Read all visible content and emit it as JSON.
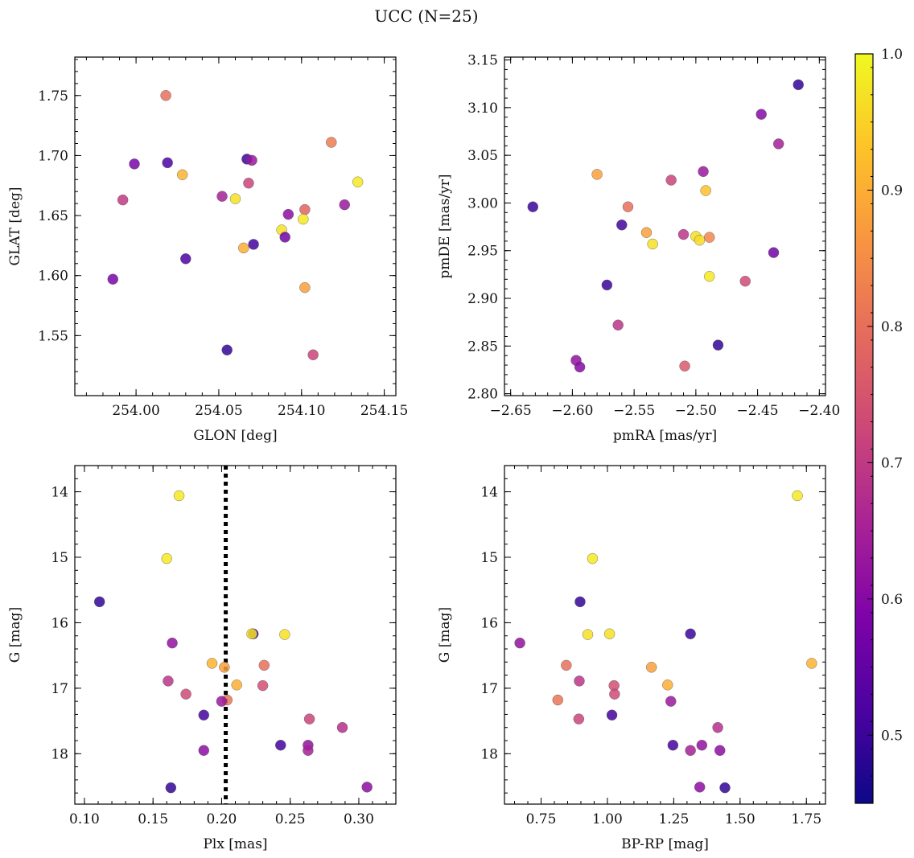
{
  "figure": {
    "title": "UCC (N=25)"
  },
  "colorbar": {
    "range": [
      0.45,
      1.0
    ],
    "ticks": [
      0.5,
      0.6,
      0.7,
      0.8,
      0.9,
      1.0
    ],
    "tick_labels": [
      "0.5",
      "0.6",
      "0.7",
      "0.8",
      "0.9",
      "1.0"
    ],
    "colormap": "plasma"
  },
  "chart_data": [
    {
      "type": "scatter",
      "id": "glon-glat",
      "xlabel": "GLON [deg]",
      "ylabel": "GLAT [deg]",
      "xlim": [
        253.963,
        254.157
      ],
      "ylim": [
        1.5,
        1.782
      ],
      "xticks": [
        254.0,
        254.05,
        254.1,
        254.15
      ],
      "xtick_labels": [
        "254.00",
        "254.05",
        "254.10",
        "254.15"
      ],
      "yticks": [
        1.55,
        1.6,
        1.65,
        1.7,
        1.75
      ],
      "ytick_labels": [
        "1.55",
        "1.60",
        "1.65",
        "1.70",
        "1.75"
      ],
      "points": [
        {
          "x": 254.018,
          "y": 1.75,
          "c": 0.8
        },
        {
          "x": 253.999,
          "y": 1.693,
          "c": 0.58
        },
        {
          "x": 254.019,
          "y": 1.694,
          "c": 0.52
        },
        {
          "x": 254.067,
          "y": 1.697,
          "c": 0.5
        },
        {
          "x": 254.07,
          "y": 1.696,
          "c": 0.63
        },
        {
          "x": 254.118,
          "y": 1.711,
          "c": 0.82
        },
        {
          "x": 253.992,
          "y": 1.663,
          "c": 0.7
        },
        {
          "x": 254.028,
          "y": 1.684,
          "c": 0.91
        },
        {
          "x": 254.052,
          "y": 1.666,
          "c": 0.65
        },
        {
          "x": 254.06,
          "y": 1.664,
          "c": 0.97
        },
        {
          "x": 254.068,
          "y": 1.677,
          "c": 0.72
        },
        {
          "x": 254.134,
          "y": 1.678,
          "c": 0.98
        },
        {
          "x": 254.092,
          "y": 1.651,
          "c": 0.61
        },
        {
          "x": 254.102,
          "y": 1.655,
          "c": 0.78
        },
        {
          "x": 254.101,
          "y": 1.647,
          "c": 0.98
        },
        {
          "x": 254.126,
          "y": 1.659,
          "c": 0.63
        },
        {
          "x": 254.088,
          "y": 1.638,
          "c": 0.97
        },
        {
          "x": 254.09,
          "y": 1.632,
          "c": 0.57
        },
        {
          "x": 254.065,
          "y": 1.623,
          "c": 0.9
        },
        {
          "x": 254.071,
          "y": 1.626,
          "c": 0.51
        },
        {
          "x": 254.03,
          "y": 1.614,
          "c": 0.52
        },
        {
          "x": 253.986,
          "y": 1.597,
          "c": 0.58
        },
        {
          "x": 254.102,
          "y": 1.59,
          "c": 0.88
        },
        {
          "x": 254.055,
          "y": 1.538,
          "c": 0.49
        },
        {
          "x": 254.107,
          "y": 1.534,
          "c": 0.72
        }
      ]
    },
    {
      "type": "scatter",
      "id": "pmra-pmde",
      "xlabel": "pmRA [mas/yr]",
      "ylabel": "pmDE [mas/yr]",
      "xlim": [
        -2.655,
        -2.395
      ],
      "ylim": [
        2.798,
        3.153
      ],
      "xticks": [
        -2.65,
        -2.6,
        -2.55,
        -2.5,
        -2.45,
        -2.4
      ],
      "xtick_labels": [
        "−2.65",
        "−2.60",
        "−2.55",
        "−2.50",
        "−2.45",
        "−2.40"
      ],
      "yticks": [
        2.8,
        2.85,
        2.9,
        2.95,
        3.0,
        3.05,
        3.1,
        3.15
      ],
      "ytick_labels": [
        "2.80",
        "2.85",
        "2.90",
        "2.95",
        "3.00",
        "3.05",
        "3.10",
        "3.15"
      ],
      "points": [
        {
          "x": -2.417,
          "y": 3.124,
          "c": 0.49
        },
        {
          "x": -2.447,
          "y": 3.093,
          "c": 0.6
        },
        {
          "x": -2.433,
          "y": 3.062,
          "c": 0.65
        },
        {
          "x": -2.494,
          "y": 3.033,
          "c": 0.63
        },
        {
          "x": -2.58,
          "y": 3.03,
          "c": 0.88
        },
        {
          "x": -2.52,
          "y": 3.024,
          "c": 0.72
        },
        {
          "x": -2.492,
          "y": 3.013,
          "c": 0.93
        },
        {
          "x": -2.632,
          "y": 2.996,
          "c": 0.5
        },
        {
          "x": -2.555,
          "y": 2.996,
          "c": 0.8
        },
        {
          "x": -2.56,
          "y": 2.977,
          "c": 0.51
        },
        {
          "x": -2.54,
          "y": 2.969,
          "c": 0.88
        },
        {
          "x": -2.51,
          "y": 2.967,
          "c": 0.69
        },
        {
          "x": -2.5,
          "y": 2.965,
          "c": 0.97
        },
        {
          "x": -2.497,
          "y": 2.961,
          "c": 0.96
        },
        {
          "x": -2.489,
          "y": 2.964,
          "c": 0.84
        },
        {
          "x": -2.535,
          "y": 2.957,
          "c": 0.97
        },
        {
          "x": -2.437,
          "y": 2.948,
          "c": 0.57
        },
        {
          "x": -2.489,
          "y": 2.923,
          "c": 0.98
        },
        {
          "x": -2.46,
          "y": 2.918,
          "c": 0.73
        },
        {
          "x": -2.572,
          "y": 2.914,
          "c": 0.5
        },
        {
          "x": -2.563,
          "y": 2.872,
          "c": 0.69
        },
        {
          "x": -2.482,
          "y": 2.851,
          "c": 0.49
        },
        {
          "x": -2.597,
          "y": 2.835,
          "c": 0.62
        },
        {
          "x": -2.594,
          "y": 2.828,
          "c": 0.6
        },
        {
          "x": -2.509,
          "y": 2.829,
          "c": 0.76
        }
      ]
    },
    {
      "type": "scatter",
      "id": "plx-g",
      "xlabel": "Plx [mas]",
      "ylabel": "G [mag]",
      "xlim": [
        0.093,
        0.327
      ],
      "ylim": [
        18.77,
        13.6
      ],
      "y_inverted": true,
      "vline": 0.203,
      "xticks": [
        0.1,
        0.15,
        0.2,
        0.25,
        0.3
      ],
      "xtick_labels": [
        "0.10",
        "0.15",
        "0.20",
        "0.25",
        "0.30"
      ],
      "yticks": [
        14,
        15,
        16,
        17,
        18
      ],
      "ytick_labels": [
        "14",
        "15",
        "16",
        "17",
        "18"
      ],
      "points": [
        {
          "x": 0.169,
          "y": 14.06,
          "c": 0.98
        },
        {
          "x": 0.16,
          "y": 15.02,
          "c": 0.98
        },
        {
          "x": 0.111,
          "y": 15.68,
          "c": 0.49
        },
        {
          "x": 0.223,
          "y": 16.17,
          "c": 0.5
        },
        {
          "x": 0.222,
          "y": 16.17,
          "c": 0.97
        },
        {
          "x": 0.246,
          "y": 16.18,
          "c": 0.97
        },
        {
          "x": 0.164,
          "y": 16.31,
          "c": 0.62
        },
        {
          "x": 0.193,
          "y": 16.62,
          "c": 0.91
        },
        {
          "x": 0.202,
          "y": 16.68,
          "c": 0.88
        },
        {
          "x": 0.231,
          "y": 16.65,
          "c": 0.8
        },
        {
          "x": 0.161,
          "y": 16.89,
          "c": 0.69
        },
        {
          "x": 0.211,
          "y": 16.95,
          "c": 0.9
        },
        {
          "x": 0.23,
          "y": 16.96,
          "c": 0.74
        },
        {
          "x": 0.174,
          "y": 17.09,
          "c": 0.73
        },
        {
          "x": 0.204,
          "y": 17.18,
          "c": 0.81
        },
        {
          "x": 0.2,
          "y": 17.2,
          "c": 0.63
        },
        {
          "x": 0.187,
          "y": 17.41,
          "c": 0.51
        },
        {
          "x": 0.264,
          "y": 17.47,
          "c": 0.72
        },
        {
          "x": 0.288,
          "y": 17.6,
          "c": 0.68
        },
        {
          "x": 0.243,
          "y": 17.87,
          "c": 0.51
        },
        {
          "x": 0.263,
          "y": 17.87,
          "c": 0.62
        },
        {
          "x": 0.187,
          "y": 17.95,
          "c": 0.61
        },
        {
          "x": 0.263,
          "y": 17.95,
          "c": 0.65
        },
        {
          "x": 0.163,
          "y": 18.52,
          "c": 0.49
        },
        {
          "x": 0.306,
          "y": 18.51,
          "c": 0.61
        }
      ]
    },
    {
      "type": "scatter",
      "id": "bprp-g",
      "xlabel": "BP-RP [mag]",
      "ylabel": "G [mag]",
      "xlim": [
        0.612,
        1.822
      ],
      "ylim": [
        18.77,
        13.6
      ],
      "y_inverted": true,
      "xticks": [
        0.75,
        1.0,
        1.25,
        1.5,
        1.75
      ],
      "xtick_labels": [
        "0.75",
        "1.00",
        "1.25",
        "1.50",
        "1.75"
      ],
      "yticks": [
        14,
        15,
        16,
        17,
        18
      ],
      "ytick_labels": [
        "14",
        "15",
        "16",
        "17",
        "18"
      ],
      "points": [
        {
          "x": 1.716,
          "y": 14.06,
          "c": 0.98
        },
        {
          "x": 0.944,
          "y": 15.02,
          "c": 0.98
        },
        {
          "x": 0.897,
          "y": 15.68,
          "c": 0.49
        },
        {
          "x": 1.313,
          "y": 16.17,
          "c": 0.5
        },
        {
          "x": 1.008,
          "y": 16.17,
          "c": 0.97
        },
        {
          "x": 0.926,
          "y": 16.18,
          "c": 0.97
        },
        {
          "x": 0.67,
          "y": 16.31,
          "c": 0.62
        },
        {
          "x": 1.77,
          "y": 16.62,
          "c": 0.91
        },
        {
          "x": 1.166,
          "y": 16.68,
          "c": 0.88
        },
        {
          "x": 0.845,
          "y": 16.65,
          "c": 0.8
        },
        {
          "x": 0.894,
          "y": 16.89,
          "c": 0.69
        },
        {
          "x": 1.227,
          "y": 16.95,
          "c": 0.9
        },
        {
          "x": 1.025,
          "y": 16.96,
          "c": 0.74
        },
        {
          "x": 1.027,
          "y": 17.09,
          "c": 0.73
        },
        {
          "x": 0.813,
          "y": 17.18,
          "c": 0.81
        },
        {
          "x": 1.239,
          "y": 17.2,
          "c": 0.63
        },
        {
          "x": 1.017,
          "y": 17.41,
          "c": 0.51
        },
        {
          "x": 0.892,
          "y": 17.47,
          "c": 0.72
        },
        {
          "x": 1.416,
          "y": 17.6,
          "c": 0.68
        },
        {
          "x": 1.247,
          "y": 17.87,
          "c": 0.51
        },
        {
          "x": 1.356,
          "y": 17.87,
          "c": 0.62
        },
        {
          "x": 1.424,
          "y": 17.95,
          "c": 0.61
        },
        {
          "x": 1.313,
          "y": 17.95,
          "c": 0.65
        },
        {
          "x": 1.443,
          "y": 18.52,
          "c": 0.49
        },
        {
          "x": 1.348,
          "y": 18.51,
          "c": 0.61
        }
      ]
    }
  ]
}
